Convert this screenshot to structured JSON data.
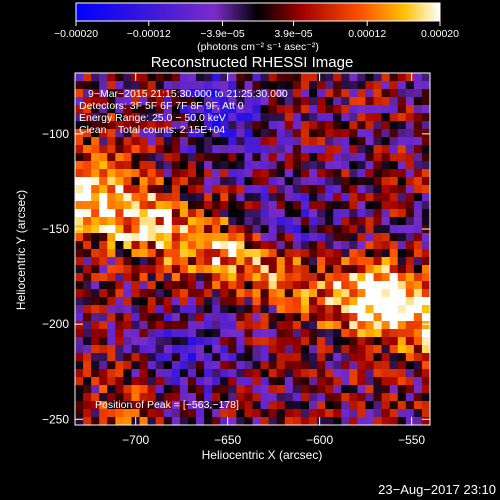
{
  "chart_data": {
    "type": "heatmap",
    "title": "Reconstructed RHESSI Image",
    "xlabel": "Heliocentric X (arcsec)",
    "ylabel": "Heliocentric Y (arcsec)",
    "xlim": [
      -733,
      -540
    ],
    "ylim": [
      -253,
      -68
    ],
    "x_ticks": [
      -700,
      -650,
      -600,
      -550
    ],
    "x_tick_labels": [
      "−700",
      "−650",
      "−600",
      "−550"
    ],
    "y_ticks": [
      -100,
      -150,
      -200,
      -250
    ],
    "y_tick_labels": [
      "−100",
      "−150",
      "−200",
      "−250"
    ],
    "colorbar": {
      "range": [
        -0.0002,
        0.0002
      ],
      "ticks": [
        -0.0002,
        -0.00012,
        -3.9e-05,
        3.9e-05,
        0.00012,
        0.0002
      ],
      "tick_labels": [
        "−0.00020",
        "−0.00012",
        "−3.9e−05",
        "3.9e−05",
        "0.00012",
        "0.00020"
      ],
      "unit_label": "(photons cm⁻² s⁻¹ asec⁻²)"
    },
    "annotations": [
      "9−Mar−2015 21:15:30.000 to 21:25:30.000",
      "Detectors: 3F 5F 6F 7F 8F 9F, Att 0",
      "Energy Range: 25.0 − 50.0 keV",
      "Clean    Total counts: 2.15E+04"
    ],
    "peak_label": "Position of Peak = [−563,−178]",
    "peak": [
      -563,
      -178
    ],
    "footer_date": "23−Aug−2017 23:10",
    "grid": false
  }
}
